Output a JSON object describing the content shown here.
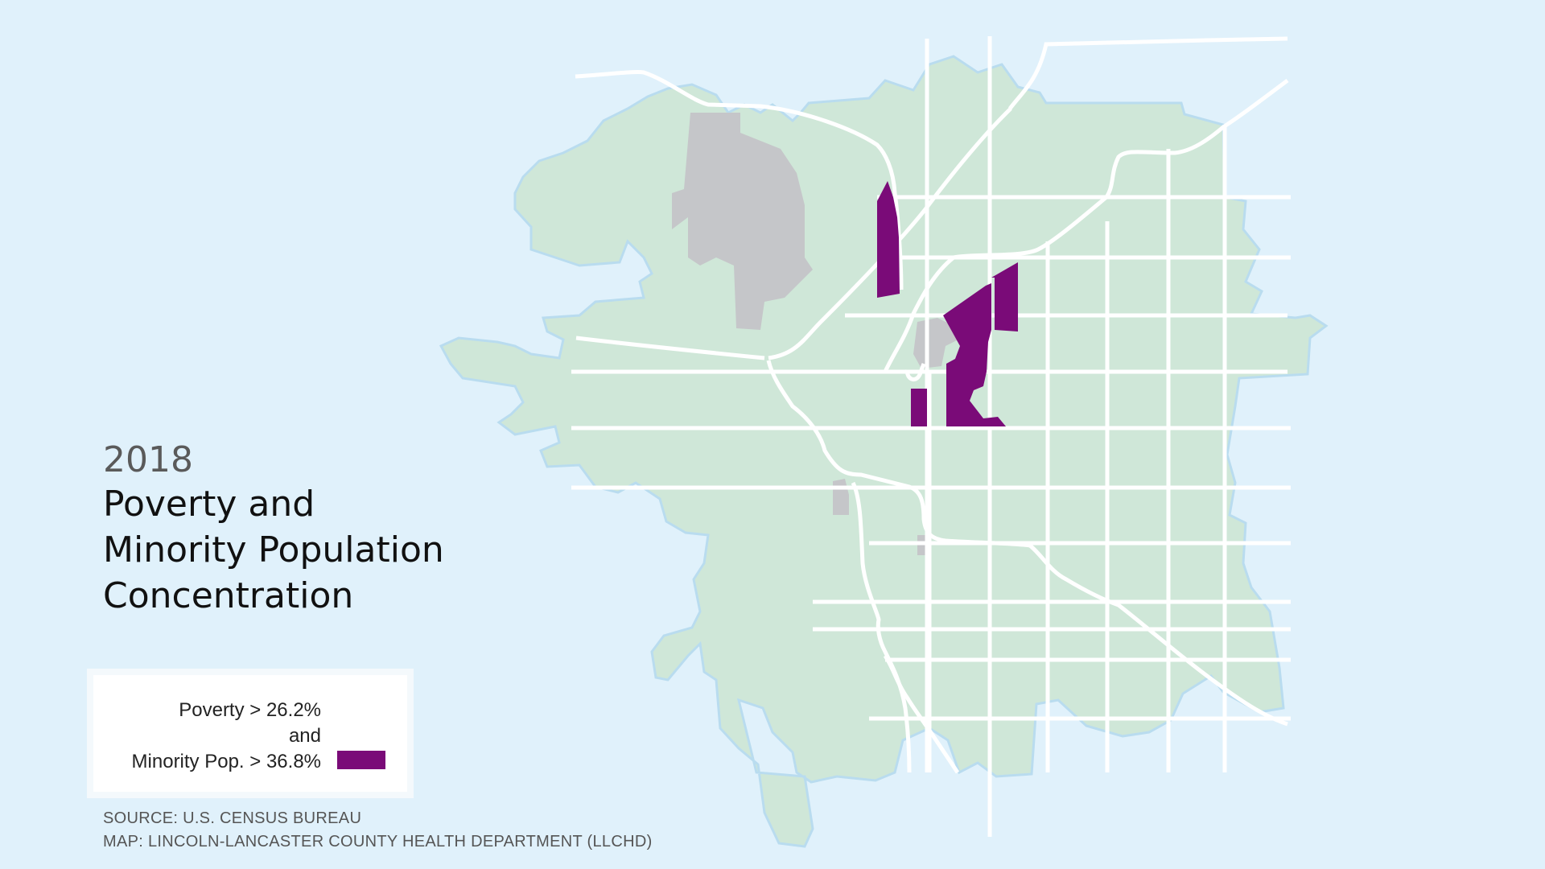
{
  "title": {
    "year": "2018",
    "lines": [
      "Poverty and",
      "Minority Population",
      "Concentration"
    ]
  },
  "legend": {
    "line1": "Poverty > 26.2%",
    "line2": "and",
    "line3": "Minority Pop. > 36.8%",
    "swatch_color": "#7a0b78"
  },
  "source": {
    "line1": "SOURCE: U.S. CENSUS BUREAU",
    "line2": "MAP: LINCOLN-LANCASTER COUNTY HEALTH DEPARTMENT (LLCHD)"
  },
  "map": {
    "colors": {
      "background": "#e0f1fb",
      "city": "#cfe7d8",
      "city_outline": "#b9dcef",
      "non_residential": "#c5c6c9",
      "roads": "#ffffff",
      "highlight": "#7a0b78"
    },
    "highlighted_areas": 4
  }
}
